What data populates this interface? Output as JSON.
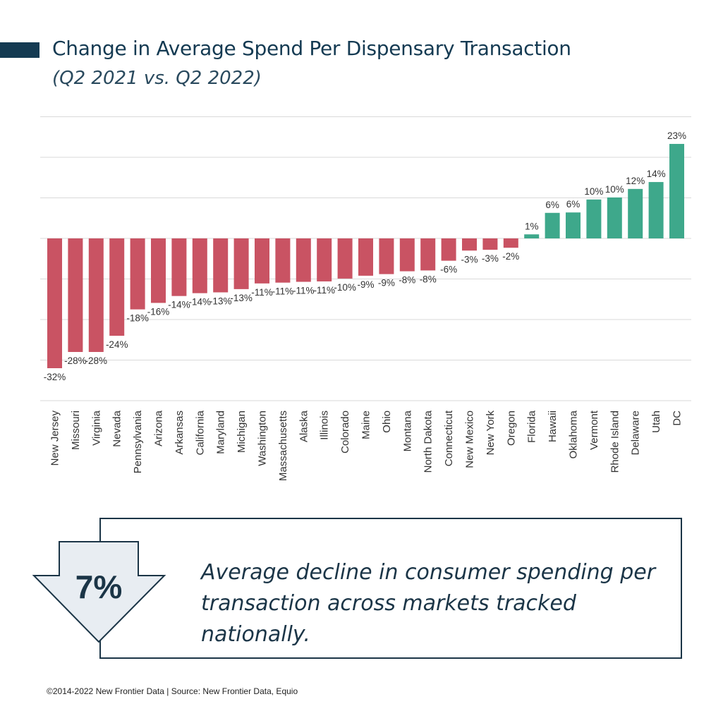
{
  "header": {
    "title": "Change in Average Spend Per Dispensary Transaction",
    "subtitle": "(Q2 2021 vs. Q2 2022)"
  },
  "callout": {
    "stat": "7%",
    "text": "Average decline in consumer spending per transaction across markets tracked nationally."
  },
  "footer": {
    "text": "©2014-2022  New Frontier Data | Source: New Frontier Data, Equio"
  },
  "colors": {
    "negative": "#c95363",
    "positive": "#3ea88b",
    "accent": "#143a52",
    "arrow_fill": "#e8edf2"
  },
  "chart_data": {
    "type": "bar",
    "categories": [
      "New Jersey",
      "Missouri",
      "Virginia",
      "Nevada",
      "Pennsylvania",
      "Arizona",
      "Arkansas",
      "California",
      "Maryland",
      "Michigan",
      "Washington",
      "Massachusetts",
      "Alaska",
      "Illinois",
      "Colorado",
      "Maine",
      "Ohio",
      "Montana",
      "North Dakota",
      "Connecticut",
      "New Mexico",
      "New York",
      "Oregon",
      "Florida",
      "Hawaii",
      "Oklahoma",
      "Vermont",
      "Rhode Island",
      "Delaware",
      "Utah",
      "DC"
    ],
    "values": [
      -32,
      -28,
      -28,
      -24,
      -17.5,
      -15.9,
      -14.2,
      -13.5,
      -13.3,
      -12.5,
      -11.1,
      -10.9,
      -10.7,
      -10.6,
      -9.9,
      -9.2,
      -8.8,
      -8.1,
      -7.9,
      -5.5,
      -3.0,
      -2.8,
      -2.3,
      1.0,
      6.3,
      6.4,
      9.6,
      10.1,
      12.2,
      13.9,
      23.3
    ],
    "labels": [
      "-32%",
      "-28%",
      "-28%",
      "-24%",
      "-18%",
      "-16%",
      "-14%",
      "-14%",
      "-13%",
      "-13%",
      "-11%",
      "-11%",
      "-11%",
      "-11%",
      "-10%",
      "-9%",
      "-9%",
      "-8%",
      "-8%",
      "-6%",
      "-3%",
      "-3%",
      "-2%",
      "1%",
      "6%",
      "6%",
      "10%",
      "10%",
      "12%",
      "14%",
      "23%"
    ],
    "ylim": [
      -40,
      30
    ],
    "grid": true,
    "xlabel": "",
    "ylabel": ""
  }
}
